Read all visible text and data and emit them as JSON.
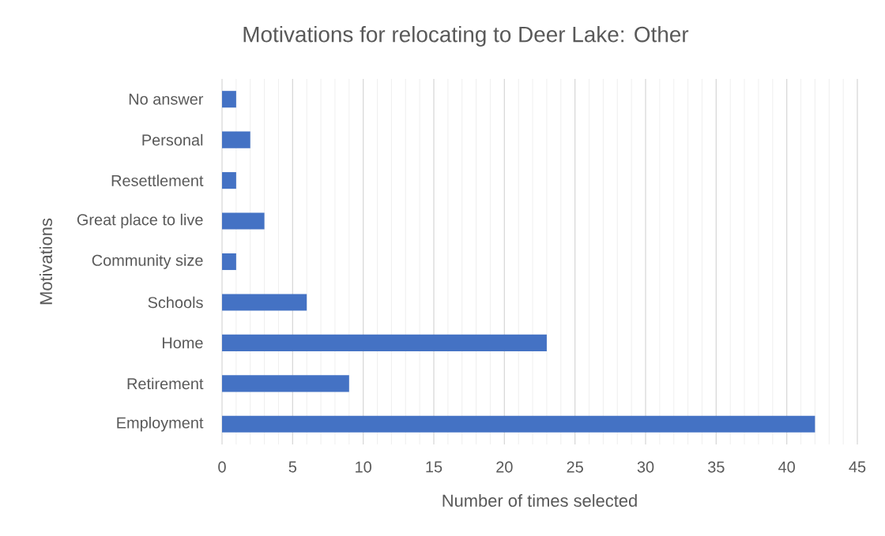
{
  "chart_data": {
    "type": "bar",
    "orientation": "horizontal",
    "title": "Motivations for relocating to Deer Lake: Other",
    "xlabel": "Number of times selected",
    "ylabel": "Motivations",
    "categories": [
      "No answer",
      "Personal",
      "Resettlement",
      "Great place to live",
      "Community size",
      "Schools",
      "Home",
      "Retirement",
      "Employment"
    ],
    "values": [
      1,
      2,
      1,
      3,
      1,
      6,
      23,
      9,
      42
    ],
    "color": "#4472c4",
    "xlim": [
      0,
      45
    ],
    "xticks": [
      0,
      5,
      10,
      15,
      20,
      25,
      30,
      35,
      40,
      45
    ],
    "grid": "x"
  }
}
